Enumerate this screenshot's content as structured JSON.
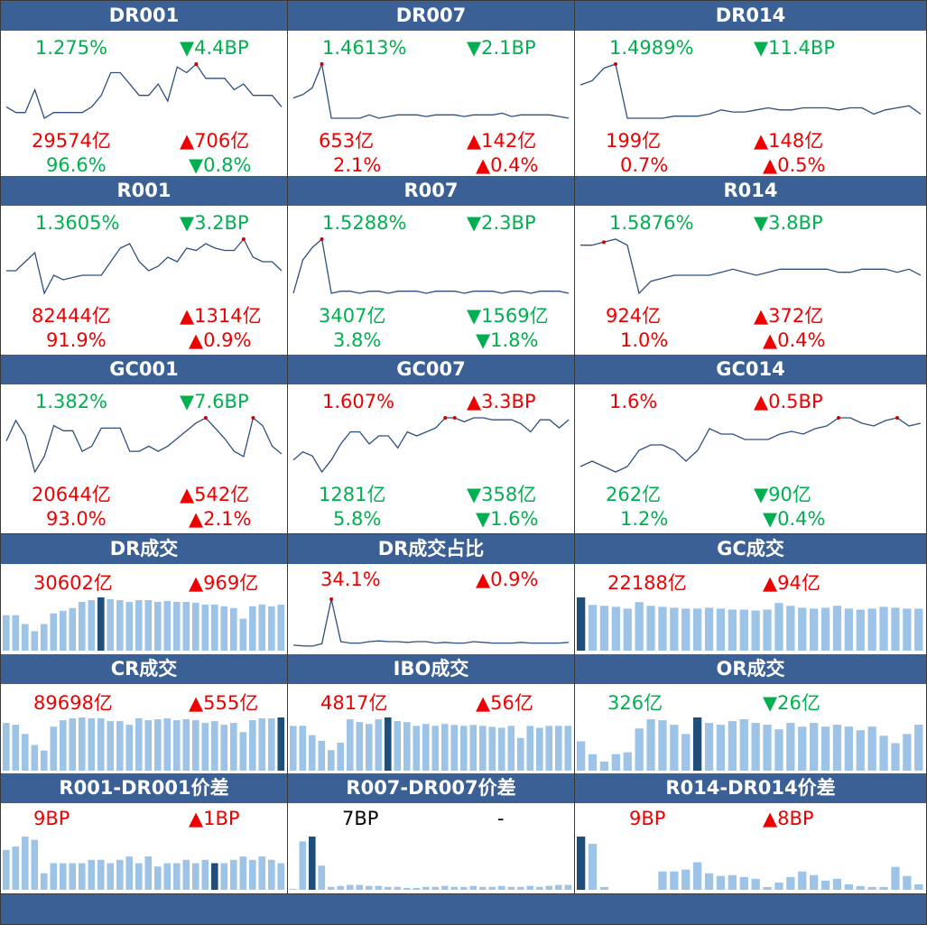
{
  "colors": {
    "header_bg": "#3b6096",
    "up": "#ee0000",
    "down": "#00b050",
    "line": "#2f4f7f",
    "bar": "#9dc3e6",
    "bar_highlight": "#1f4e79",
    "marker": "#cc0000"
  },
  "rate_rows": [
    [
      {
        "title": "DR001",
        "rate": "1.275%",
        "rate_dir": "dn",
        "bp": "▼4.4BP",
        "bp_dir": "dn",
        "vol": "29574亿",
        "vol_dir": "up",
        "vchg": "▲706亿",
        "vchg_dir": "up",
        "pct": "96.6%",
        "pct_dir": "dn",
        "pchg": "▼0.8%",
        "pchg_dir": "dn",
        "series": [
          1.3,
          1.29,
          1.29,
          1.33,
          1.28,
          1.29,
          1.29,
          1.29,
          1.29,
          1.3,
          1.32,
          1.36,
          1.36,
          1.34,
          1.32,
          1.32,
          1.34,
          1.31,
          1.37,
          1.36,
          1.375,
          1.35,
          1.35,
          1.35,
          1.33,
          1.34,
          1.32,
          1.32,
          1.32,
          1.3
        ],
        "marker_idx": [
          20
        ]
      },
      {
        "title": "DR007",
        "rate": "1.4613%",
        "rate_dir": "dn",
        "bp": "▼2.1BP",
        "bp_dir": "dn",
        "vol": "653亿",
        "vol_dir": "up",
        "vchg": "▲142亿",
        "vchg_dir": "up",
        "pct": "2.1%",
        "pct_dir": "up",
        "pchg": "▲0.4%",
        "pchg_dir": "up",
        "series": [
          1.52,
          1.53,
          1.55,
          1.62,
          1.46,
          1.46,
          1.46,
          1.46,
          1.47,
          1.46,
          1.465,
          1.47,
          1.47,
          1.47,
          1.465,
          1.47,
          1.47,
          1.47,
          1.465,
          1.47,
          1.47,
          1.47,
          1.475,
          1.465,
          1.47,
          1.47,
          1.47,
          1.47,
          1.465,
          1.46
        ],
        "marker_idx": [
          3
        ]
      },
      {
        "title": "DR014",
        "rate": "1.4989%",
        "rate_dir": "dn",
        "bp": "▼11.4BP",
        "bp_dir": "dn",
        "vol": "199亿",
        "vol_dir": "up",
        "vchg": "▲148亿",
        "vchg_dir": "up",
        "pct": "0.7%",
        "pct_dir": "up",
        "pchg": "▲0.5%",
        "pchg_dir": "up",
        "series": [
          1.57,
          1.58,
          1.61,
          1.62,
          1.49,
          1.49,
          1.49,
          1.49,
          1.495,
          1.495,
          1.495,
          1.5,
          1.51,
          1.505,
          1.505,
          1.51,
          1.515,
          1.51,
          1.51,
          1.515,
          1.515,
          1.515,
          1.51,
          1.515,
          1.515,
          1.5,
          1.51,
          1.515,
          1.52,
          1.5
        ],
        "marker_idx": [
          3
        ]
      }
    ],
    [
      {
        "title": "R001",
        "rate": "1.3605%",
        "rate_dir": "dn",
        "bp": "▼3.2BP",
        "bp_dir": "dn",
        "vol": "82444亿",
        "vol_dir": "up",
        "vchg": "▲1314亿",
        "vchg_dir": "up",
        "pct": "91.9%",
        "pct_dir": "up",
        "pchg": "▲0.9%",
        "pchg_dir": "up",
        "series": [
          1.35,
          1.35,
          1.37,
          1.39,
          1.3,
          1.34,
          1.33,
          1.335,
          1.34,
          1.34,
          1.34,
          1.37,
          1.4,
          1.41,
          1.37,
          1.35,
          1.36,
          1.38,
          1.37,
          1.4,
          1.395,
          1.41,
          1.4,
          1.395,
          1.395,
          1.42,
          1.38,
          1.37,
          1.37,
          1.35
        ],
        "marker_idx": [
          25
        ]
      },
      {
        "title": "R007",
        "rate": "1.5288%",
        "rate_dir": "dn",
        "bp": "▼2.3BP",
        "bp_dir": "dn",
        "vol": "3407亿",
        "vol_dir": "dn",
        "vchg": "▼1569亿",
        "vchg_dir": "dn",
        "pct": "3.8%",
        "pct_dir": "dn",
        "pchg": "▼1.8%",
        "pchg_dir": "dn",
        "series": [
          1.53,
          1.61,
          1.64,
          1.66,
          1.53,
          1.535,
          1.535,
          1.53,
          1.535,
          1.535,
          1.53,
          1.535,
          1.535,
          1.535,
          1.53,
          1.535,
          1.535,
          1.535,
          1.53,
          1.535,
          1.535,
          1.535,
          1.53,
          1.535,
          1.535,
          1.53,
          1.535,
          1.535,
          1.535,
          1.53
        ],
        "marker_idx": [
          3
        ]
      },
      {
        "title": "R014",
        "rate": "1.5876%",
        "rate_dir": "dn",
        "bp": "▼3.8BP",
        "bp_dir": "dn",
        "vol": "924亿",
        "vol_dir": "up",
        "vchg": "▲372亿",
        "vchg_dir": "up",
        "pct": "1.0%",
        "pct_dir": "up",
        "pchg": "▲0.4%",
        "pchg_dir": "up",
        "series": [
          1.66,
          1.66,
          1.665,
          1.67,
          1.66,
          1.58,
          1.6,
          1.605,
          1.61,
          1.61,
          1.61,
          1.61,
          1.615,
          1.62,
          1.615,
          1.61,
          1.615,
          1.62,
          1.62,
          1.62,
          1.62,
          1.62,
          1.615,
          1.615,
          1.62,
          1.62,
          1.62,
          1.615,
          1.62,
          1.61
        ],
        "marker_idx": [
          2
        ]
      }
    ],
    [
      {
        "title": "GC001",
        "rate": "1.382%",
        "rate_dir": "dn",
        "bp": "▼7.6BP",
        "bp_dir": "dn",
        "vol": "20644亿",
        "vol_dir": "up",
        "vchg": "▲542亿",
        "vchg_dir": "up",
        "pct": "93.0%",
        "pct_dir": "up",
        "pchg": "▲2.1%",
        "pchg_dir": "up",
        "series": [
          1.42,
          1.5,
          1.44,
          1.3,
          1.36,
          1.48,
          1.46,
          1.46,
          1.38,
          1.4,
          1.47,
          1.47,
          1.47,
          1.38,
          1.38,
          1.4,
          1.38,
          1.4,
          1.43,
          1.46,
          1.49,
          1.51,
          1.47,
          1.43,
          1.38,
          1.36,
          1.51,
          1.48,
          1.4,
          1.37
        ],
        "marker_idx": [
          21,
          26
        ]
      },
      {
        "title": "GC007",
        "rate": "1.607%",
        "rate_dir": "up",
        "bp": "▲3.3BP",
        "bp_dir": "up",
        "vol": "1281亿",
        "vol_dir": "dn",
        "vchg": "▼358亿",
        "vchg_dir": "dn",
        "pct": "5.8%",
        "pct_dir": "dn",
        "pchg": "▼1.6%",
        "pchg_dir": "dn",
        "series": [
          1.52,
          1.54,
          1.53,
          1.49,
          1.52,
          1.56,
          1.59,
          1.59,
          1.56,
          1.58,
          1.58,
          1.55,
          1.59,
          1.58,
          1.59,
          1.6,
          1.625,
          1.625,
          1.615,
          1.625,
          1.625,
          1.62,
          1.62,
          1.62,
          1.61,
          1.59,
          1.62,
          1.62,
          1.6,
          1.62
        ],
        "marker_idx": [
          16,
          17
        ]
      },
      {
        "title": "GC014",
        "rate": "1.6%",
        "rate_dir": "up",
        "bp": "▲0.5BP",
        "bp_dir": "up",
        "vol": "262亿",
        "vol_dir": "dn",
        "vchg": "▼90亿",
        "vchg_dir": "dn",
        "pct": "1.2%",
        "pct_dir": "dn",
        "pchg": "▼0.4%",
        "pchg_dir": "dn",
        "series": [
          1.5,
          1.51,
          1.5,
          1.49,
          1.5,
          1.53,
          1.54,
          1.54,
          1.53,
          1.51,
          1.53,
          1.57,
          1.56,
          1.56,
          1.55,
          1.55,
          1.55,
          1.56,
          1.565,
          1.56,
          1.57,
          1.575,
          1.59,
          1.59,
          1.58,
          1.575,
          1.585,
          1.59,
          1.575,
          1.58
        ],
        "marker_idx": [
          22,
          27
        ]
      }
    ]
  ],
  "volume_rows": [
    [
      {
        "title": "DR成交",
        "v1": "30602亿",
        "v1_dir": "up",
        "v2": "▲969亿",
        "v2_dir": "up",
        "kind": "bar",
        "series": [
          40,
          40,
          30,
          22,
          30,
          42,
          45,
          48,
          55,
          57,
          60,
          58,
          57,
          55,
          57,
          57,
          55,
          56,
          55,
          55,
          54,
          52,
          52,
          50,
          48,
          36,
          50,
          52,
          50,
          52
        ],
        "highlight": [
          10
        ]
      },
      {
        "title": "DR成交占比",
        "v1": "34.1%",
        "v1_dir": "up",
        "v2": "▲0.9%",
        "v2_dir": "up",
        "kind": "line",
        "series": [
          1.5,
          1.0,
          0.8,
          2.5,
          34,
          4,
          3,
          3,
          4,
          4.5,
          4,
          4,
          3.5,
          4,
          4,
          3,
          3.5,
          3,
          3,
          4,
          3.5,
          3,
          3,
          3,
          3.5,
          3,
          3,
          3,
          3,
          3.5
        ],
        "marker_idx": [
          4
        ]
      },
      {
        "title": "GC成交",
        "v1": "22188亿",
        "v1_dir": "up",
        "v2": "▲94亿",
        "v2_dir": "up",
        "kind": "bar",
        "series": [
          57,
          49,
          48,
          47,
          45,
          52,
          48,
          47,
          46,
          45,
          45,
          46,
          45,
          44,
          44,
          43,
          44,
          51,
          48,
          46,
          45,
          46,
          48,
          45,
          44,
          45,
          47,
          46,
          45,
          45
        ],
        "highlight": [
          0
        ]
      }
    ],
    [
      {
        "title": "CR成交",
        "v1": "89698亿",
        "v1_dir": "up",
        "v2": "▲555亿",
        "v2_dir": "up",
        "kind": "bar",
        "series": [
          52,
          50,
          40,
          28,
          22,
          48,
          55,
          57,
          58,
          57,
          57,
          54,
          54,
          50,
          57,
          55,
          56,
          57,
          55,
          56,
          55,
          52,
          54,
          50,
          52,
          42,
          55,
          57,
          57,
          58
        ],
        "highlight": [
          29
        ]
      },
      {
        "title": "IBO成交",
        "v1": "4817亿",
        "v1_dir": "up",
        "v2": "▲56亿",
        "v2_dir": "up",
        "kind": "bar",
        "series": [
          48,
          48,
          38,
          32,
          22,
          30,
          55,
          52,
          50,
          55,
          57,
          53,
          52,
          48,
          50,
          48,
          50,
          49,
          48,
          49,
          48,
          47,
          46,
          48,
          35,
          48,
          46,
          48,
          48,
          48
        ],
        "highlight": [
          10
        ]
      },
      {
        "title": "OR成交",
        "v1": "326亿",
        "v1_dir": "dn",
        "v2": "▼26亿",
        "v2_dir": "dn",
        "kind": "bar",
        "series": [
          32,
          18,
          10,
          18,
          20,
          46,
          56,
          55,
          50,
          40,
          58,
          52,
          50,
          54,
          56,
          52,
          50,
          45,
          52,
          48,
          52,
          48,
          50,
          48,
          44,
          48,
          38,
          30,
          40,
          50
        ],
        "highlight": [
          10
        ]
      }
    ],
    [
      {
        "title": "R001-DR001价差",
        "v1": "9BP",
        "v1_dir": "up",
        "v2": "▲1BP",
        "v2_dir": "up",
        "kind": "bar",
        "series": [
          12,
          13,
          16,
          15,
          5,
          8,
          8,
          8,
          8,
          9,
          9,
          8,
          9,
          10,
          8,
          10,
          7,
          8,
          8,
          9,
          8,
          9,
          8,
          8,
          9,
          10,
          9,
          10,
          9,
          8
        ],
        "highlight": [
          22
        ]
      },
      {
        "title": "R007-DR007价差",
        "v1": "7BP",
        "v1_dir": "nb",
        "v2": "-",
        "v2_dir": "nb",
        "kind": "bar",
        "series": [
          1,
          50,
          55,
          25,
          3,
          4,
          5,
          5,
          4,
          4,
          3,
          3,
          2,
          2,
          3,
          3,
          4,
          3,
          3,
          4,
          3,
          3,
          4,
          3,
          3,
          4,
          3,
          4,
          5,
          5
        ],
        "highlight": [
          2
        ]
      },
      {
        "title": "R014-DR014价差",
        "v1": "9BP",
        "v1_dir": "up",
        "v2": "▲8BP",
        "v2_dir": "up",
        "kind": "bar",
        "series": [
          58,
          50,
          3,
          0,
          0,
          0,
          0,
          20,
          20,
          22,
          30,
          18,
          15,
          16,
          14,
          12,
          3,
          8,
          14,
          20,
          16,
          10,
          12,
          6,
          4,
          3,
          3,
          25,
          15,
          6
        ],
        "highlight": [
          0
        ]
      }
    ]
  ],
  "chart_data": {
    "type": "dashboard",
    "note_series_units": "rates in %, volumes in 亿"
  }
}
